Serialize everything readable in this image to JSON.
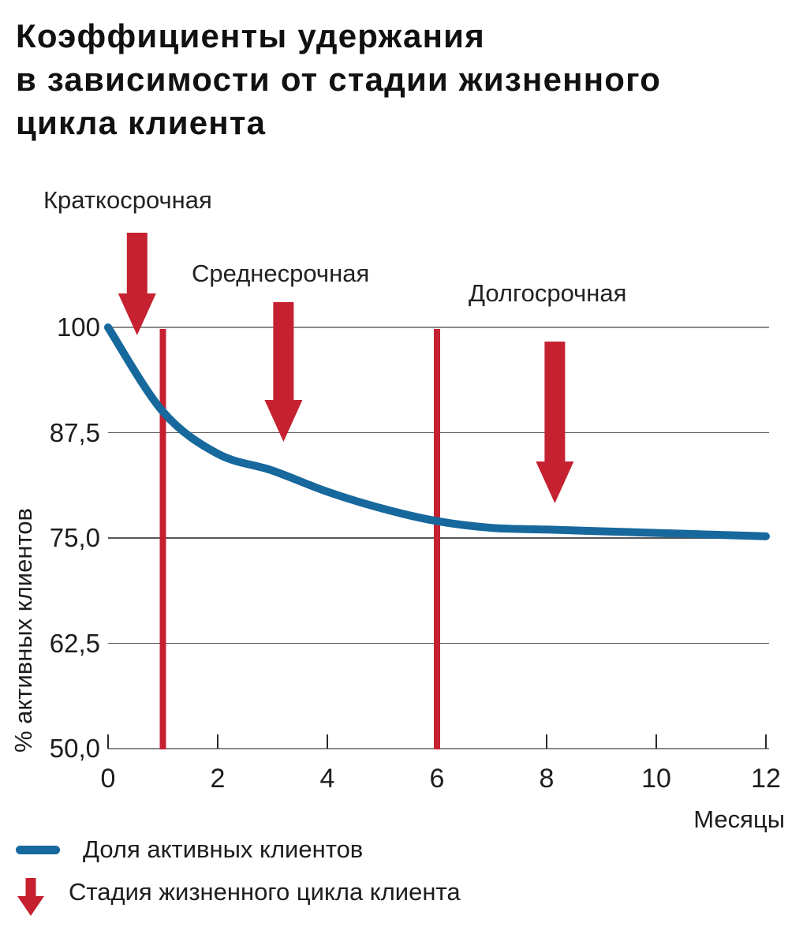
{
  "title": "Коэффициенты удержания\nв зависимости от стадии жизненного\nцикла клиента",
  "colors": {
    "line": "#17689c",
    "arrow": "#c52130",
    "grid_major": "#8a8a8a",
    "grid_minor": "#565656",
    "tick": "#2a2a2a",
    "text": "#1d1d1d"
  },
  "chart_data": {
    "type": "line",
    "title": "Коэффициенты удержания в зависимости от стадии жизненного цикла клиента",
    "xlabel": "Месяцы",
    "ylabel": "% активных клиентов",
    "xlim": [
      0,
      12
    ],
    "ylim": [
      50,
      100
    ],
    "grid": "horizontal",
    "legend_position": "bottom-left",
    "x": [
      0,
      1,
      2,
      3,
      4,
      5,
      6,
      7,
      8,
      9,
      10,
      11,
      12
    ],
    "series": [
      {
        "name": "Доля активных клиентов",
        "color": "#17689c",
        "values": [
          100,
          90,
          85,
          83,
          80.5,
          78.5,
          77,
          76.2,
          76,
          75.8,
          75.6,
          75.4,
          75.2
        ]
      }
    ],
    "x_ticks": [
      {
        "value": 0,
        "label": "0"
      },
      {
        "value": 2,
        "label": "2"
      },
      {
        "value": 4,
        "label": "4"
      },
      {
        "value": 6,
        "label": "6"
      },
      {
        "value": 8,
        "label": "8"
      },
      {
        "value": 10,
        "label": "10"
      },
      {
        "value": 12,
        "label": "12"
      }
    ],
    "y_ticks": [
      {
        "value": 100,
        "label": "100",
        "major": true
      },
      {
        "value": 87.5,
        "label": "87,5",
        "major": false
      },
      {
        "value": 75,
        "label": "75,0",
        "major": false
      },
      {
        "value": 62.5,
        "label": "62,5",
        "major": false
      },
      {
        "value": 50,
        "label": "50,0",
        "major": true
      }
    ],
    "vlines": [
      {
        "x": 1,
        "color": "#c52130"
      },
      {
        "x": 6,
        "color": "#c52130"
      }
    ],
    "stages": [
      {
        "label": "Краткосрочная",
        "arrow_x": 0.53
      },
      {
        "label": "Среднесрочная",
        "arrow_x": 3.2
      },
      {
        "label": "Долгосрочная",
        "arrow_x": 8.15
      }
    ]
  },
  "legend": {
    "items": [
      {
        "swatch": "line",
        "label": "Доля активных клиентов"
      },
      {
        "swatch": "arrow",
        "label": "Стадия жизненного цикла клиента"
      }
    ]
  }
}
